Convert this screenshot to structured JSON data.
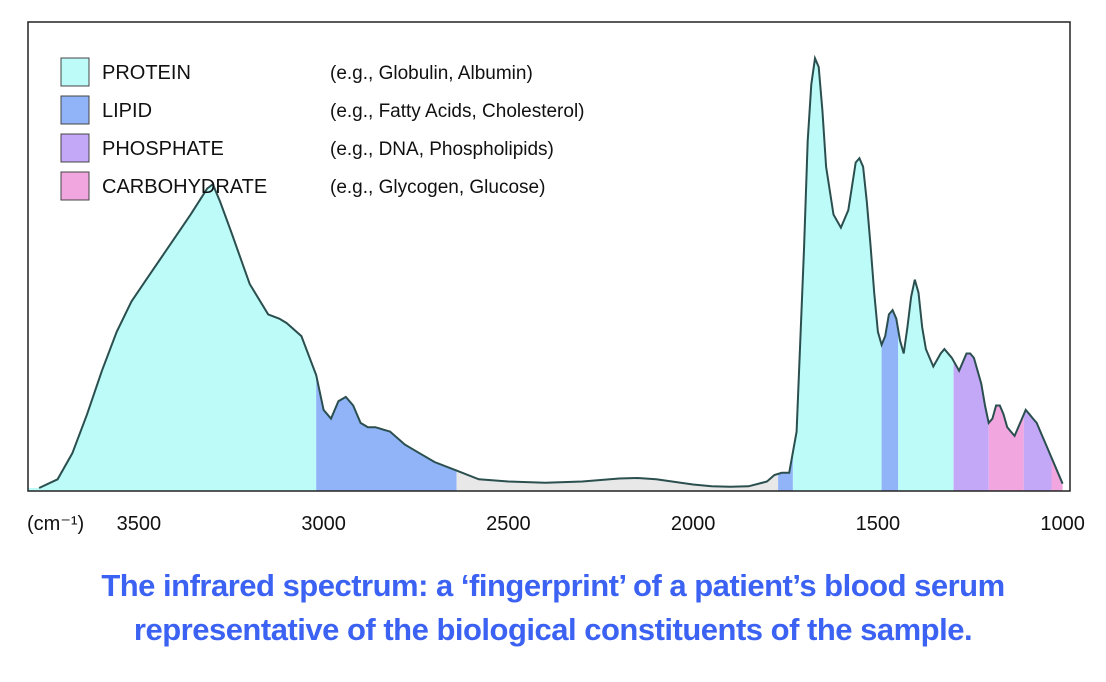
{
  "colors": {
    "protein": "#bdfbf8",
    "lipid": "#90b4f7",
    "phosphate": "#c3a8f8",
    "carbohydrate": "#f1a6e0",
    "baseline": "#e8e8e8",
    "line": "#2b4f4f",
    "caption": "#3b62f2"
  },
  "chart_data": {
    "type": "area",
    "title": "",
    "xlabel": "(cm⁻¹)",
    "ylabel": "",
    "x_reversed": true,
    "xlim": [
      3800,
      980
    ],
    "ylim": [
      0,
      100
    ],
    "x_ticks": [
      3500,
      3000,
      2500,
      2000,
      1500,
      1000
    ],
    "x_tick_labels": [
      "3500",
      "3000",
      "2500",
      "2000",
      "1500",
      "1000"
    ],
    "legend": [
      {
        "category": "protein",
        "label": "PROTEIN",
        "example": "(e.g., Globulin, Albumin)"
      },
      {
        "category": "lipid",
        "label": "LIPID",
        "example": "(e.g., Fatty Acids, Cholesterol)"
      },
      {
        "category": "phosphate",
        "label": "PHOSPHATE",
        "example": "(e.g., DNA, Phospholipids)"
      },
      {
        "category": "carbohydrate",
        "label": "CARBOHYDRATE",
        "example": "(e.g., Glycogen, Glucose)"
      }
    ],
    "legend_position": "top-left",
    "regions": [
      {
        "category": "protein",
        "from": 3800,
        "to": 3020
      },
      {
        "category": "lipid",
        "from": 3020,
        "to": 2640
      },
      {
        "category": "baseline",
        "from": 2640,
        "to": 1770
      },
      {
        "category": "lipid",
        "from": 1770,
        "to": 1730
      },
      {
        "category": "protein",
        "from": 1730,
        "to": 1490
      },
      {
        "category": "lipid",
        "from": 1490,
        "to": 1445
      },
      {
        "category": "protein",
        "from": 1445,
        "to": 1295
      },
      {
        "category": "phosphate",
        "from": 1295,
        "to": 1200
      },
      {
        "category": "carbohydrate",
        "from": 1200,
        "to": 1105
      },
      {
        "category": "phosphate",
        "from": 1105,
        "to": 1030
      },
      {
        "category": "carbohydrate",
        "from": 1030,
        "to": 1000
      }
    ],
    "spectrum": {
      "x": [
        3770,
        3720,
        3680,
        3640,
        3600,
        3560,
        3520,
        3480,
        3440,
        3400,
        3360,
        3330,
        3315,
        3300,
        3280,
        3250,
        3200,
        3150,
        3120,
        3100,
        3060,
        3020,
        3000,
        2980,
        2960,
        2940,
        2920,
        2900,
        2880,
        2860,
        2820,
        2780,
        2740,
        2700,
        2640,
        2580,
        2500,
        2400,
        2300,
        2200,
        2150,
        2100,
        2000,
        1950,
        1900,
        1850,
        1800,
        1780,
        1760,
        1740,
        1720,
        1700,
        1690,
        1680,
        1670,
        1660,
        1650,
        1640,
        1620,
        1600,
        1580,
        1560,
        1550,
        1540,
        1530,
        1520,
        1510,
        1500,
        1490,
        1480,
        1470,
        1460,
        1450,
        1440,
        1430,
        1420,
        1410,
        1400,
        1390,
        1380,
        1370,
        1350,
        1330,
        1320,
        1300,
        1280,
        1260,
        1250,
        1240,
        1230,
        1220,
        1210,
        1200,
        1190,
        1180,
        1170,
        1160,
        1150,
        1140,
        1130,
        1120,
        1110,
        1100,
        1090,
        1080,
        1070,
        1060,
        1040,
        1020,
        1000
      ],
      "y": [
        0,
        2,
        8,
        17,
        27,
        36,
        43,
        48,
        53,
        58,
        63,
        67,
        69,
        70,
        66,
        59,
        47,
        40,
        39,
        38,
        35,
        26,
        18,
        16,
        20,
        21,
        19,
        15,
        14,
        14,
        13,
        10,
        8,
        6,
        4,
        2,
        1.5,
        1.2,
        1.5,
        2.2,
        2.3,
        2,
        0.8,
        0.4,
        0.3,
        0.4,
        1.5,
        3,
        3.5,
        3.5,
        13,
        55,
        80,
        93,
        99,
        97,
        87,
        74,
        63,
        60,
        64,
        75,
        76,
        74,
        66,
        56,
        45,
        36,
        33,
        35,
        40,
        41,
        39,
        34,
        31,
        37,
        44,
        48,
        45,
        37,
        32,
        28,
        31,
        32,
        30,
        27,
        31,
        31,
        30,
        27,
        24,
        19,
        15,
        16,
        19,
        19,
        17,
        14,
        13,
        12,
        14,
        16,
        18,
        17,
        16,
        15,
        13,
        9,
        5,
        1
      ]
    }
  },
  "caption": {
    "line1": "The infrared spectrum: a ‘fingerprint’ of a patient’s blood serum",
    "line2": "representative of the biological constituents of the sample."
  }
}
